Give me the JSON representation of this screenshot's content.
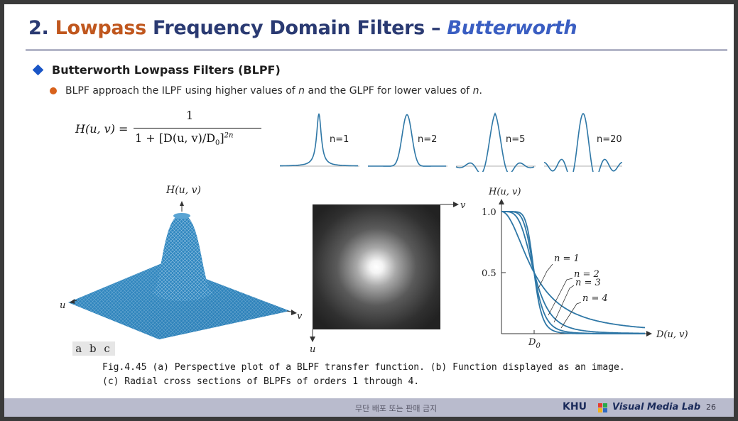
{
  "title": {
    "number": "2.",
    "highlight": "Lowpass",
    "main": "Frequency Domain Filters –",
    "italic": "Butterworth"
  },
  "bullet_1": "Butterworth Lowpass Filters (BLPF)",
  "bullet_2": {
    "part1": "BLPF approach the ILPF using higher values of ",
    "n1": "n",
    "part2": " and the GLPF for lower values of ",
    "n2": "n",
    "part3": "."
  },
  "formula": {
    "lhs": "H(u, v) =",
    "numerator": "1",
    "denominator": "1 + [D(u, v)/D0]",
    "exponent": "2n"
  },
  "profile_labels": [
    "n=1",
    "n=2",
    "n=5",
    "n=20"
  ],
  "fig_a": {
    "axis_h": "H(u, v)",
    "axis_u": "u",
    "axis_v": "v"
  },
  "fig_b": {
    "axis_u": "u",
    "axis_v": "v"
  },
  "fig_c": {
    "axis_h": "H(u, v)",
    "y_tick_1": "1.0",
    "y_tick_05": "0.5",
    "x_axis": "D(u, v)",
    "d0": "D0",
    "curve_labels": [
      "n = 1",
      "n = 2",
      "n = 3",
      "n = 4"
    ]
  },
  "chart_data": {
    "type": "line",
    "title": "",
    "xlabel": "D(u, v)",
    "ylabel": "H(u, v)",
    "x_ticks": [
      "D0"
    ],
    "y_ticks": [
      "0.5",
      "1.0"
    ],
    "x_in_units_of_D0": [
      0,
      0.25,
      0.5,
      0.75,
      1.0,
      1.25,
      1.5,
      2.0,
      2.5,
      3.0
    ],
    "series": [
      {
        "name": "n = 1",
        "values": [
          1.0,
          0.94,
          0.8,
          0.64,
          0.5,
          0.39,
          0.31,
          0.2,
          0.14,
          0.1
        ]
      },
      {
        "name": "n = 2",
        "values": [
          1.0,
          1.0,
          0.94,
          0.76,
          0.5,
          0.29,
          0.16,
          0.06,
          0.03,
          0.01
        ]
      },
      {
        "name": "n = 3",
        "values": [
          1.0,
          1.0,
          0.98,
          0.84,
          0.5,
          0.21,
          0.08,
          0.02,
          0.0,
          0.0
        ]
      },
      {
        "name": "n = 4",
        "values": [
          1.0,
          1.0,
          1.0,
          0.91,
          0.5,
          0.13,
          0.04,
          0.0,
          0.0,
          0.0
        ]
      }
    ],
    "ylim": [
      0,
      1.0
    ]
  },
  "figure_tags": "a b c",
  "caption": {
    "line1": "Fig.4.45 (a) Perspective plot of a BLPF transfer function. (b) Function displayed as an image.",
    "line2": "(c) Radial cross sections of BLPFs of orders 1 through 4."
  },
  "footer": {
    "notice": "무단 배포 또는 판매 금지",
    "khu": "KHU",
    "lab": "Visual Media Lab",
    "page": "26"
  },
  "colors": {
    "title_blue": "#2a3a72",
    "title_orange": "#c0571e",
    "title_italic": "#3a5ec2",
    "curve_blue": "#2e77a6",
    "footer_bg": "#b9bbcd"
  }
}
